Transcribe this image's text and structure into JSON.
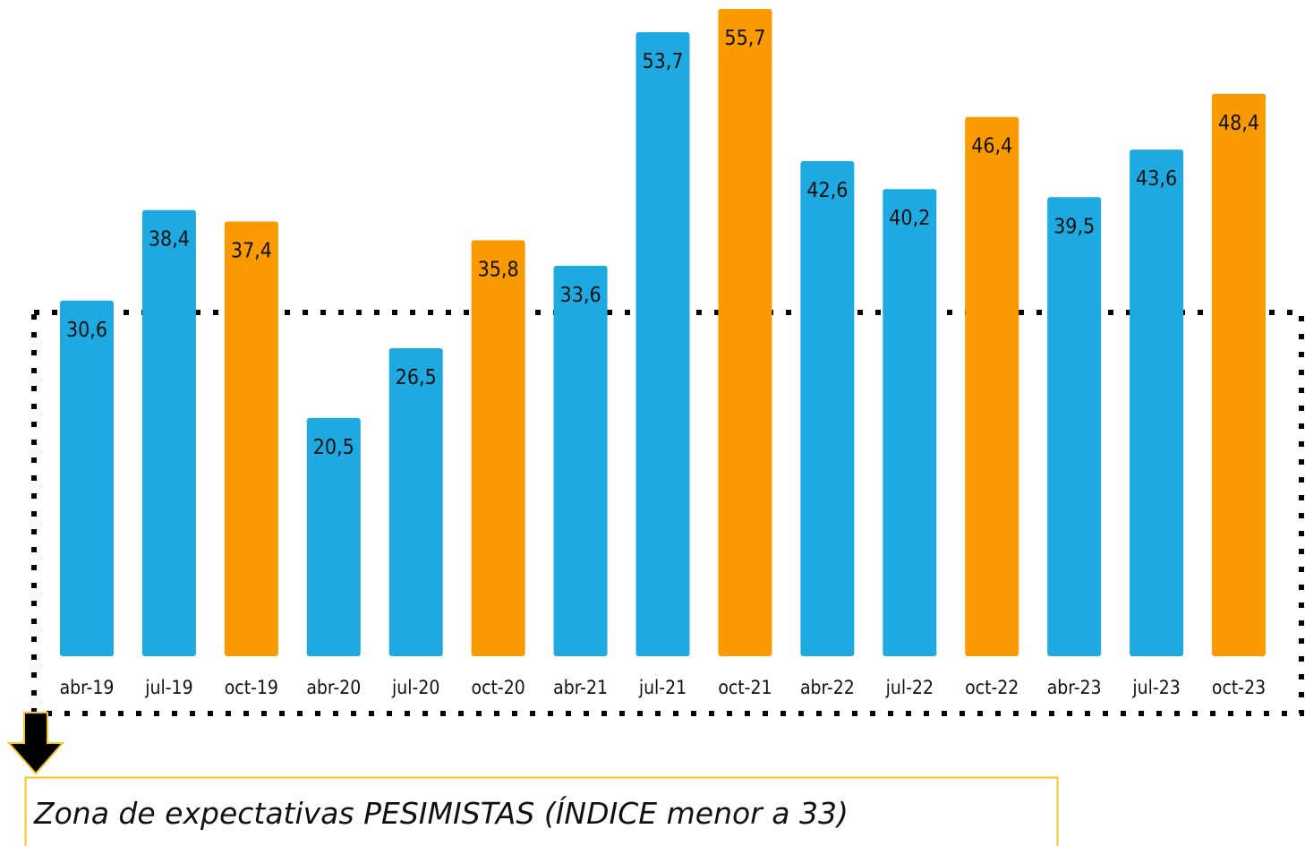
{
  "chart_data": {
    "type": "bar",
    "categories": [
      "abr-19",
      "jul-19",
      "oct-19",
      "abr-20",
      "jul-20",
      "oct-20",
      "abr-21",
      "jul-21",
      "oct-21",
      "abr-22",
      "jul-22",
      "oct-22",
      "abr-23",
      "jul-23",
      "oct-23"
    ],
    "values": [
      30.6,
      38.4,
      37.4,
      20.5,
      26.5,
      35.8,
      33.6,
      53.7,
      55.7,
      42.6,
      40.2,
      46.4,
      39.5,
      43.6,
      48.4
    ],
    "value_labels": [
      "30,6",
      "38,4",
      "37,4",
      "20,5",
      "26,5",
      "35,8",
      "33,6",
      "53,7",
      "55,7",
      "42,6",
      "40,2",
      "46,4",
      "39,5",
      "43,6",
      "48,4"
    ],
    "colors": [
      "#1eaae1",
      "#1eaae1",
      "#f99a00",
      "#1eaae1",
      "#1eaae1",
      "#f99a00",
      "#1eaae1",
      "#1eaae1",
      "#f99a00",
      "#1eaae1",
      "#1eaae1",
      "#f99a00",
      "#1eaae1",
      "#1eaae1",
      "#f99a00"
    ],
    "annotation": "Zona de expectativas PESIMISTAS (ÍNDICE menor a 33)"
  }
}
